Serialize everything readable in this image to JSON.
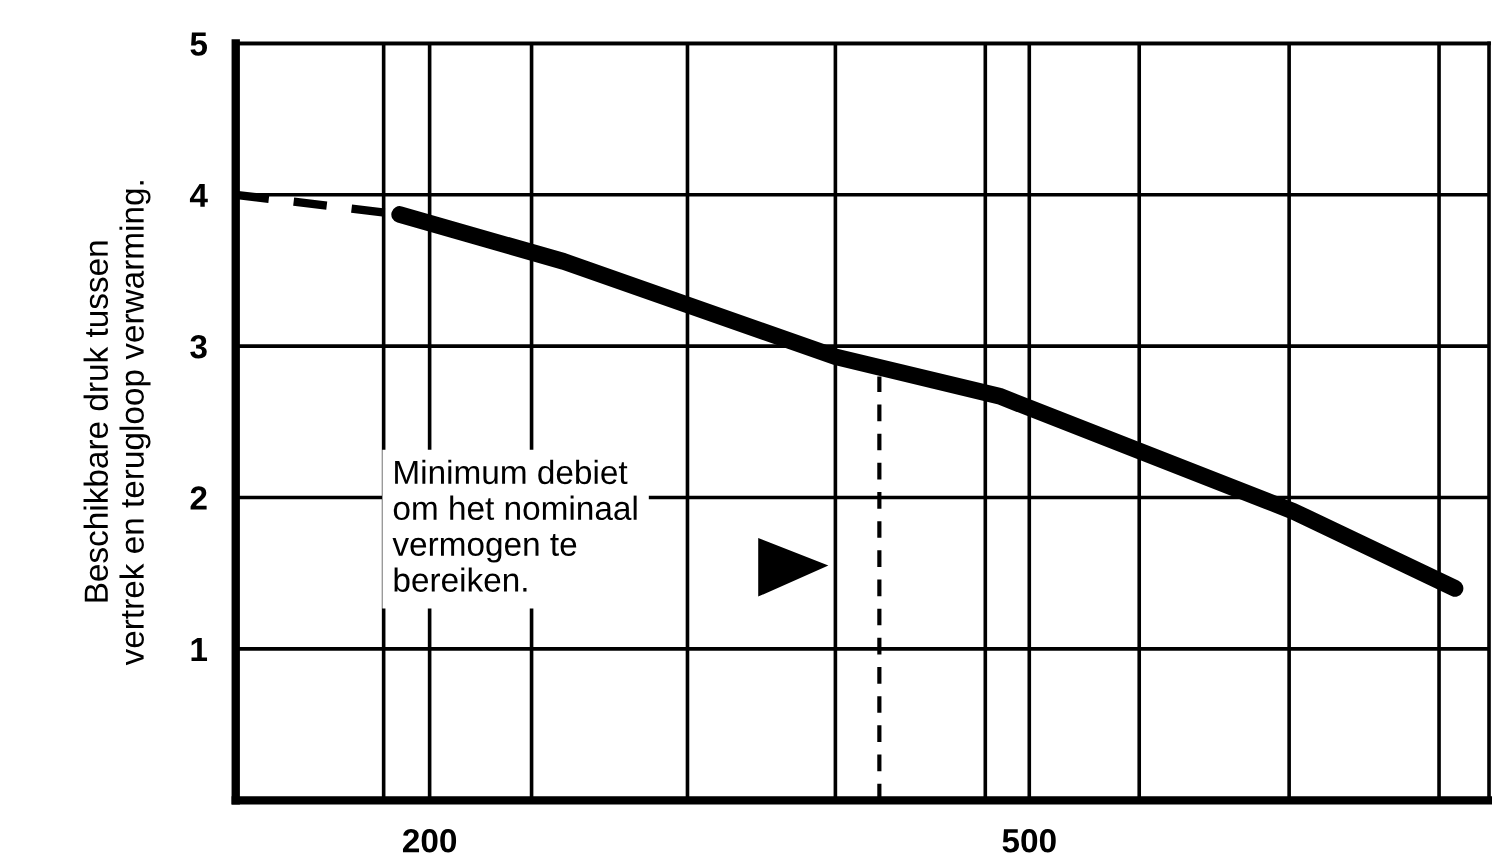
{
  "chart_data": {
    "type": "line",
    "ylabel": "Beschikbare druk tussen\nvertrek en terugloop verwarming.",
    "xlim": [
      103,
      730
    ],
    "ylim": [
      0,
      5
    ],
    "xticks": [
      {
        "value": 177,
        "label": null
      },
      200,
      {
        "value": 251,
        "label": null
      },
      {
        "value": 329,
        "label": null
      },
      {
        "value": 403,
        "label": null
      },
      {
        "value": 478,
        "label": null
      },
      500,
      {
        "value": 555,
        "label": null
      },
      {
        "value": 630,
        "label": null
      },
      {
        "value": 705,
        "label": null
      }
    ],
    "yticks": [
      1,
      2,
      3,
      4,
      5
    ],
    "grid": true,
    "series": [
      {
        "color": "#000000",
        "line_style": "dashed",
        "x": [
          103,
          185
        ],
        "values": [
          4.0,
          3.87
        ]
      },
      {
        "color": "#000000",
        "line_style": "solid",
        "x": [
          185,
          267,
          403,
          485,
          632,
          713
        ],
        "values": [
          3.87,
          3.56,
          2.93,
          2.67,
          1.91,
          1.4
        ]
      },
      {
        "color": "#000000",
        "line_style": "dashed",
        "x": [
          425,
          425
        ],
        "values": [
          0,
          2.8
        ]
      }
    ],
    "annotations": [
      "Minimum debiet\nom het nominaal\nvermogen te\nbereiken."
    ]
  }
}
